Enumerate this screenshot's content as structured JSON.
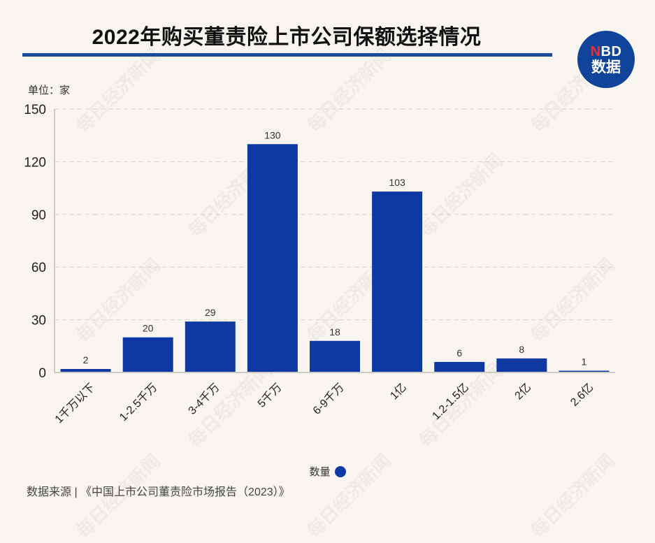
{
  "header": {
    "title": "2022年购买董责险上市公司保额选择情况",
    "logo_line1_accent": "N",
    "logo_line1_rest": "BD",
    "logo_line2": "数据",
    "unit_label": "单位：家"
  },
  "legend": {
    "label": "数量",
    "color": "#0e39a3"
  },
  "footer": {
    "source": "数据来源 | 《中国上市公司董责险市场报告（2023）》"
  },
  "watermark_text": "每日经济新闻",
  "colors": {
    "bar": "#0e39a3",
    "title_rule": "#1b4c9c",
    "logo_bg": "#10449a",
    "logo_accent": "#e8303a",
    "background": "#f8f5f1"
  },
  "chart_data": {
    "type": "bar",
    "title": "2022年购买董责险上市公司保额选择情况",
    "xlabel": "",
    "ylabel": "单位：家",
    "categories": [
      "1千万以下",
      "1-2.5千万",
      "3-4千万",
      "5千万",
      "6-9千万",
      "1亿",
      "1.2-1.5亿",
      "2亿",
      "2.6亿"
    ],
    "series": [
      {
        "name": "数量",
        "values": [
          2,
          20,
          29,
          130,
          18,
          103,
          6,
          8,
          1
        ]
      }
    ],
    "ylim": [
      0,
      150
    ],
    "yticks": [
      0,
      30,
      60,
      90,
      120,
      150
    ],
    "grid": true,
    "data_labels": true,
    "legend_position": "bottom"
  }
}
